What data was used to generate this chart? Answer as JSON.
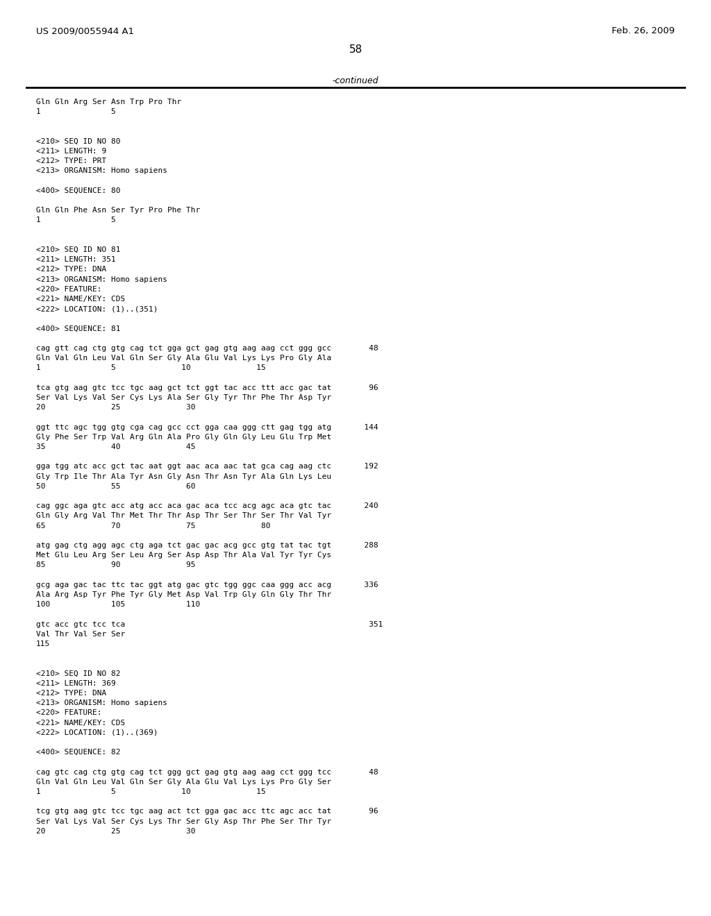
{
  "header_left": "US 2009/0055944 A1",
  "header_right": "Feb. 26, 2009",
  "page_number": "58",
  "continued_text": "-continued",
  "background_color": "#ffffff",
  "text_color": "#000000",
  "lines": [
    {
      "text": "Gln Gln Arg Ser Asn Trp Pro Thr",
      "extra_before": 0
    },
    {
      "text": "1               5",
      "extra_before": 0
    },
    {
      "text": "",
      "extra_before": 0
    },
    {
      "text": "",
      "extra_before": 0
    },
    {
      "text": "<210> SEQ ID NO 80",
      "extra_before": 0
    },
    {
      "text": "<211> LENGTH: 9",
      "extra_before": 0
    },
    {
      "text": "<212> TYPE: PRT",
      "extra_before": 0
    },
    {
      "text": "<213> ORGANISM: Homo sapiens",
      "extra_before": 0
    },
    {
      "text": "",
      "extra_before": 0
    },
    {
      "text": "<400> SEQUENCE: 80",
      "extra_before": 0
    },
    {
      "text": "",
      "extra_before": 0
    },
    {
      "text": "Gln Gln Phe Asn Ser Tyr Pro Phe Thr",
      "extra_before": 0
    },
    {
      "text": "1               5",
      "extra_before": 0
    },
    {
      "text": "",
      "extra_before": 0
    },
    {
      "text": "",
      "extra_before": 0
    },
    {
      "text": "<210> SEQ ID NO 81",
      "extra_before": 0
    },
    {
      "text": "<211> LENGTH: 351",
      "extra_before": 0
    },
    {
      "text": "<212> TYPE: DNA",
      "extra_before": 0
    },
    {
      "text": "<213> ORGANISM: Homo sapiens",
      "extra_before": 0
    },
    {
      "text": "<220> FEATURE:",
      "extra_before": 0
    },
    {
      "text": "<221> NAME/KEY: CDS",
      "extra_before": 0
    },
    {
      "text": "<222> LOCATION: (1)..(351)",
      "extra_before": 0
    },
    {
      "text": "",
      "extra_before": 0
    },
    {
      "text": "<400> SEQUENCE: 81",
      "extra_before": 0
    },
    {
      "text": "",
      "extra_before": 0
    },
    {
      "text": "cag gtt cag ctg gtg cag tct gga gct gag gtg aag aag cct ggg gcc        48",
      "extra_before": 0
    },
    {
      "text": "Gln Val Gln Leu Val Gln Ser Gly Ala Glu Val Lys Lys Pro Gly Ala",
      "extra_before": 0
    },
    {
      "text": "1               5              10              15",
      "extra_before": 0
    },
    {
      "text": "",
      "extra_before": 0
    },
    {
      "text": "tca gtg aag gtc tcc tgc aag gct tct ggt tac acc ttt acc gac tat        96",
      "extra_before": 0
    },
    {
      "text": "Ser Val Lys Val Ser Cys Lys Ala Ser Gly Tyr Thr Phe Thr Asp Tyr",
      "extra_before": 0
    },
    {
      "text": "20              25              30",
      "extra_before": 0
    },
    {
      "text": "",
      "extra_before": 0
    },
    {
      "text": "ggt ttc agc tgg gtg cga cag gcc cct gga caa ggg ctt gag tgg atg       144",
      "extra_before": 0
    },
    {
      "text": "Gly Phe Ser Trp Val Arg Gln Ala Pro Gly Gln Gly Leu Glu Trp Met",
      "extra_before": 0
    },
    {
      "text": "35              40              45",
      "extra_before": 0
    },
    {
      "text": "",
      "extra_before": 0
    },
    {
      "text": "gga tgg atc acc gct tac aat ggt aac aca aac tat gca cag aag ctc       192",
      "extra_before": 0
    },
    {
      "text": "Gly Trp Ile Thr Ala Tyr Asn Gly Asn Thr Asn Tyr Ala Gln Lys Leu",
      "extra_before": 0
    },
    {
      "text": "50              55              60",
      "extra_before": 0
    },
    {
      "text": "",
      "extra_before": 0
    },
    {
      "text": "cag ggc aga gtc acc atg acc aca gac aca tcc acg agc aca gtc tac       240",
      "extra_before": 0
    },
    {
      "text": "Gln Gly Arg Val Thr Met Thr Thr Asp Thr Ser Thr Ser Thr Val Tyr",
      "extra_before": 0
    },
    {
      "text": "65              70              75              80",
      "extra_before": 0
    },
    {
      "text": "",
      "extra_before": 0
    },
    {
      "text": "atg gag ctg agg agc ctg aga tct gac gac acg gcc gtg tat tac tgt       288",
      "extra_before": 0
    },
    {
      "text": "Met Glu Leu Arg Ser Leu Arg Ser Asp Asp Thr Ala Val Tyr Tyr Cys",
      "extra_before": 0
    },
    {
      "text": "85              90              95",
      "extra_before": 0
    },
    {
      "text": "",
      "extra_before": 0
    },
    {
      "text": "gcg aga gac tac ttc tac ggt atg gac gtc tgg ggc caa ggg acc acg       336",
      "extra_before": 0
    },
    {
      "text": "Ala Arg Asp Tyr Phe Tyr Gly Met Asp Val Trp Gly Gln Gly Thr Thr",
      "extra_before": 0
    },
    {
      "text": "100             105             110",
      "extra_before": 0
    },
    {
      "text": "",
      "extra_before": 0
    },
    {
      "text": "gtc acc gtc tcc tca                                                    351",
      "extra_before": 0
    },
    {
      "text": "Val Thr Val Ser Ser",
      "extra_before": 0
    },
    {
      "text": "115",
      "extra_before": 0
    },
    {
      "text": "",
      "extra_before": 0
    },
    {
      "text": "",
      "extra_before": 0
    },
    {
      "text": "<210> SEQ ID NO 82",
      "extra_before": 0
    },
    {
      "text": "<211> LENGTH: 369",
      "extra_before": 0
    },
    {
      "text": "<212> TYPE: DNA",
      "extra_before": 0
    },
    {
      "text": "<213> ORGANISM: Homo sapiens",
      "extra_before": 0
    },
    {
      "text": "<220> FEATURE:",
      "extra_before": 0
    },
    {
      "text": "<221> NAME/KEY: CDS",
      "extra_before": 0
    },
    {
      "text": "<222> LOCATION: (1)..(369)",
      "extra_before": 0
    },
    {
      "text": "",
      "extra_before": 0
    },
    {
      "text": "<400> SEQUENCE: 82",
      "extra_before": 0
    },
    {
      "text": "",
      "extra_before": 0
    },
    {
      "text": "cag gtc cag ctg gtg cag tct ggg gct gag gtg aag aag cct ggg tcc        48",
      "extra_before": 0
    },
    {
      "text": "Gln Val Gln Leu Val Gln Ser Gly Ala Glu Val Lys Lys Pro Gly Ser",
      "extra_before": 0
    },
    {
      "text": "1               5              10              15",
      "extra_before": 0
    },
    {
      "text": "",
      "extra_before": 0
    },
    {
      "text": "tcg gtg aag gtc tcc tgc aag act tct gga gac acc ttc agc acc tat        96",
      "extra_before": 0
    },
    {
      "text": "Ser Val Lys Val Ser Cys Lys Thr Ser Gly Asp Thr Phe Ser Thr Tyr",
      "extra_before": 0
    },
    {
      "text": "20              25              30",
      "extra_before": 0
    }
  ]
}
